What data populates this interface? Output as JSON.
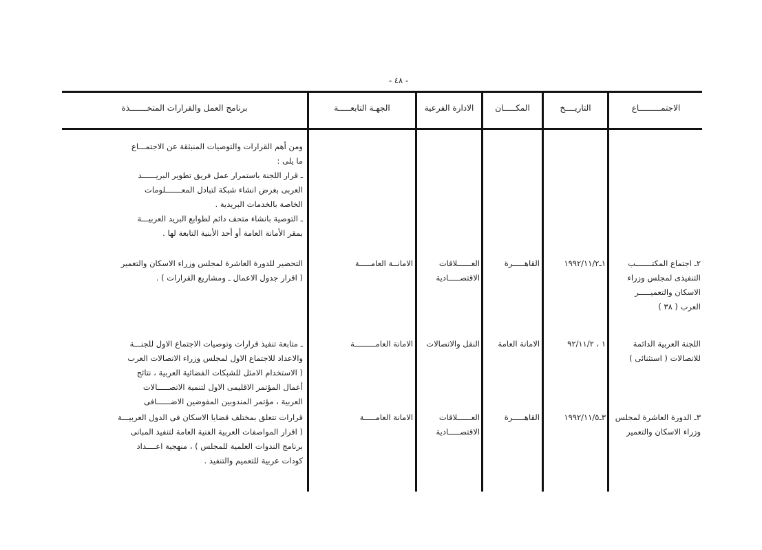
{
  "page_number": "- ٤٨ -",
  "headers": [
    "الاجتمـــــــــاع",
    "التاريــــخ",
    "المكـــــان",
    "الادارة الفرعية",
    "الجهـة التابعـــــة",
    "برنامج العمل والقرارات المتخـــــــذة"
  ],
  "intro": [
    "ومن أهم القرارات والتوصيات المنبثقة عن الاجتمـــاع",
    "ما يلى :",
    "ـ قرار اللجنة باستمرار عمل فريق تطوير البريــــــد",
    "العربى بغرض انشاء شبكة لتبادل المعـــــــلومات",
    "الخاصة بالخدمات البريدية .",
    "ـ التوصية بانشاء متحف دائم لطوابع البريد العربيـــة",
    "بمقر الأمانة العامة أو أحد الأبنية التابعة لها ."
  ],
  "rows": [
    {
      "meeting": [
        "٢ـ اجتماع المكتـــــــب",
        "التنفيذى لمجلس وزراء",
        "الاسكان والتعميـــــر",
        "العرب ( ٣٨ )"
      ],
      "date": "١ـ١٩٩٢/١١/٢",
      "place": "القاهـــــرة",
      "dept": [
        "العــــــلاقات",
        "الاقتصـــــادية"
      ],
      "body": "الامانــة العامـــــة",
      "program": [
        "التحضير للدورة العاشرة لمجلس وزراء الاسكان والتعمير",
        "( اقرار جدول الاعمال ـ ومشاريع القرارات ) ."
      ]
    },
    {
      "meeting": [
        "اللجنة العربية الدائمة",
        "للاتصالات ( استثنائى )"
      ],
      "date": "١ ، ٩٢/١١/٢",
      "place": "الامانة العامة",
      "dept": [
        "النقل والاتصالات"
      ],
      "body": "الامانة العامـــــــــة",
      "program": [
        "ـ متابعة تنفيذ قرارات وتوصيات الاجتماع الاول للجنـــة",
        "والاعداد للاجتماع الاول لمجلس وزراء الاتصالات العرب",
        "( الاستخدام الامثل للشبكات الفضائية العربية ، نتائج",
        "أعمال المؤتمر الاقليمى الاول لتنمية الاتصـــــالات",
        "العربية ، مؤتمر المندوبين المفوضين الاضــــــافى"
      ]
    },
    {
      "meeting": [
        "٣ـ الدورة العاشرة لمجلس",
        "وزراء الاسكان والتعمير"
      ],
      "date": "٣ـ١٩٩٢/١١/٥",
      "place": "القاهـــــرة",
      "dept": [
        "العــــــلاقات",
        "الاقتصـــــادية"
      ],
      "body": "الامانة العامـــــة",
      "program": [
        "قرارات تتعلق بمختلف قضايا الاسكان فى الدول العربيـــة",
        "( اقرار المواصفات العربية الفنية العامة لتنفيذ المبانى",
        "برنامج الندوات العلمية للمجلس ) ، منهجية اعــــداد",
        "كودات عربية للتعميم والتنفيذ ."
      ]
    }
  ]
}
